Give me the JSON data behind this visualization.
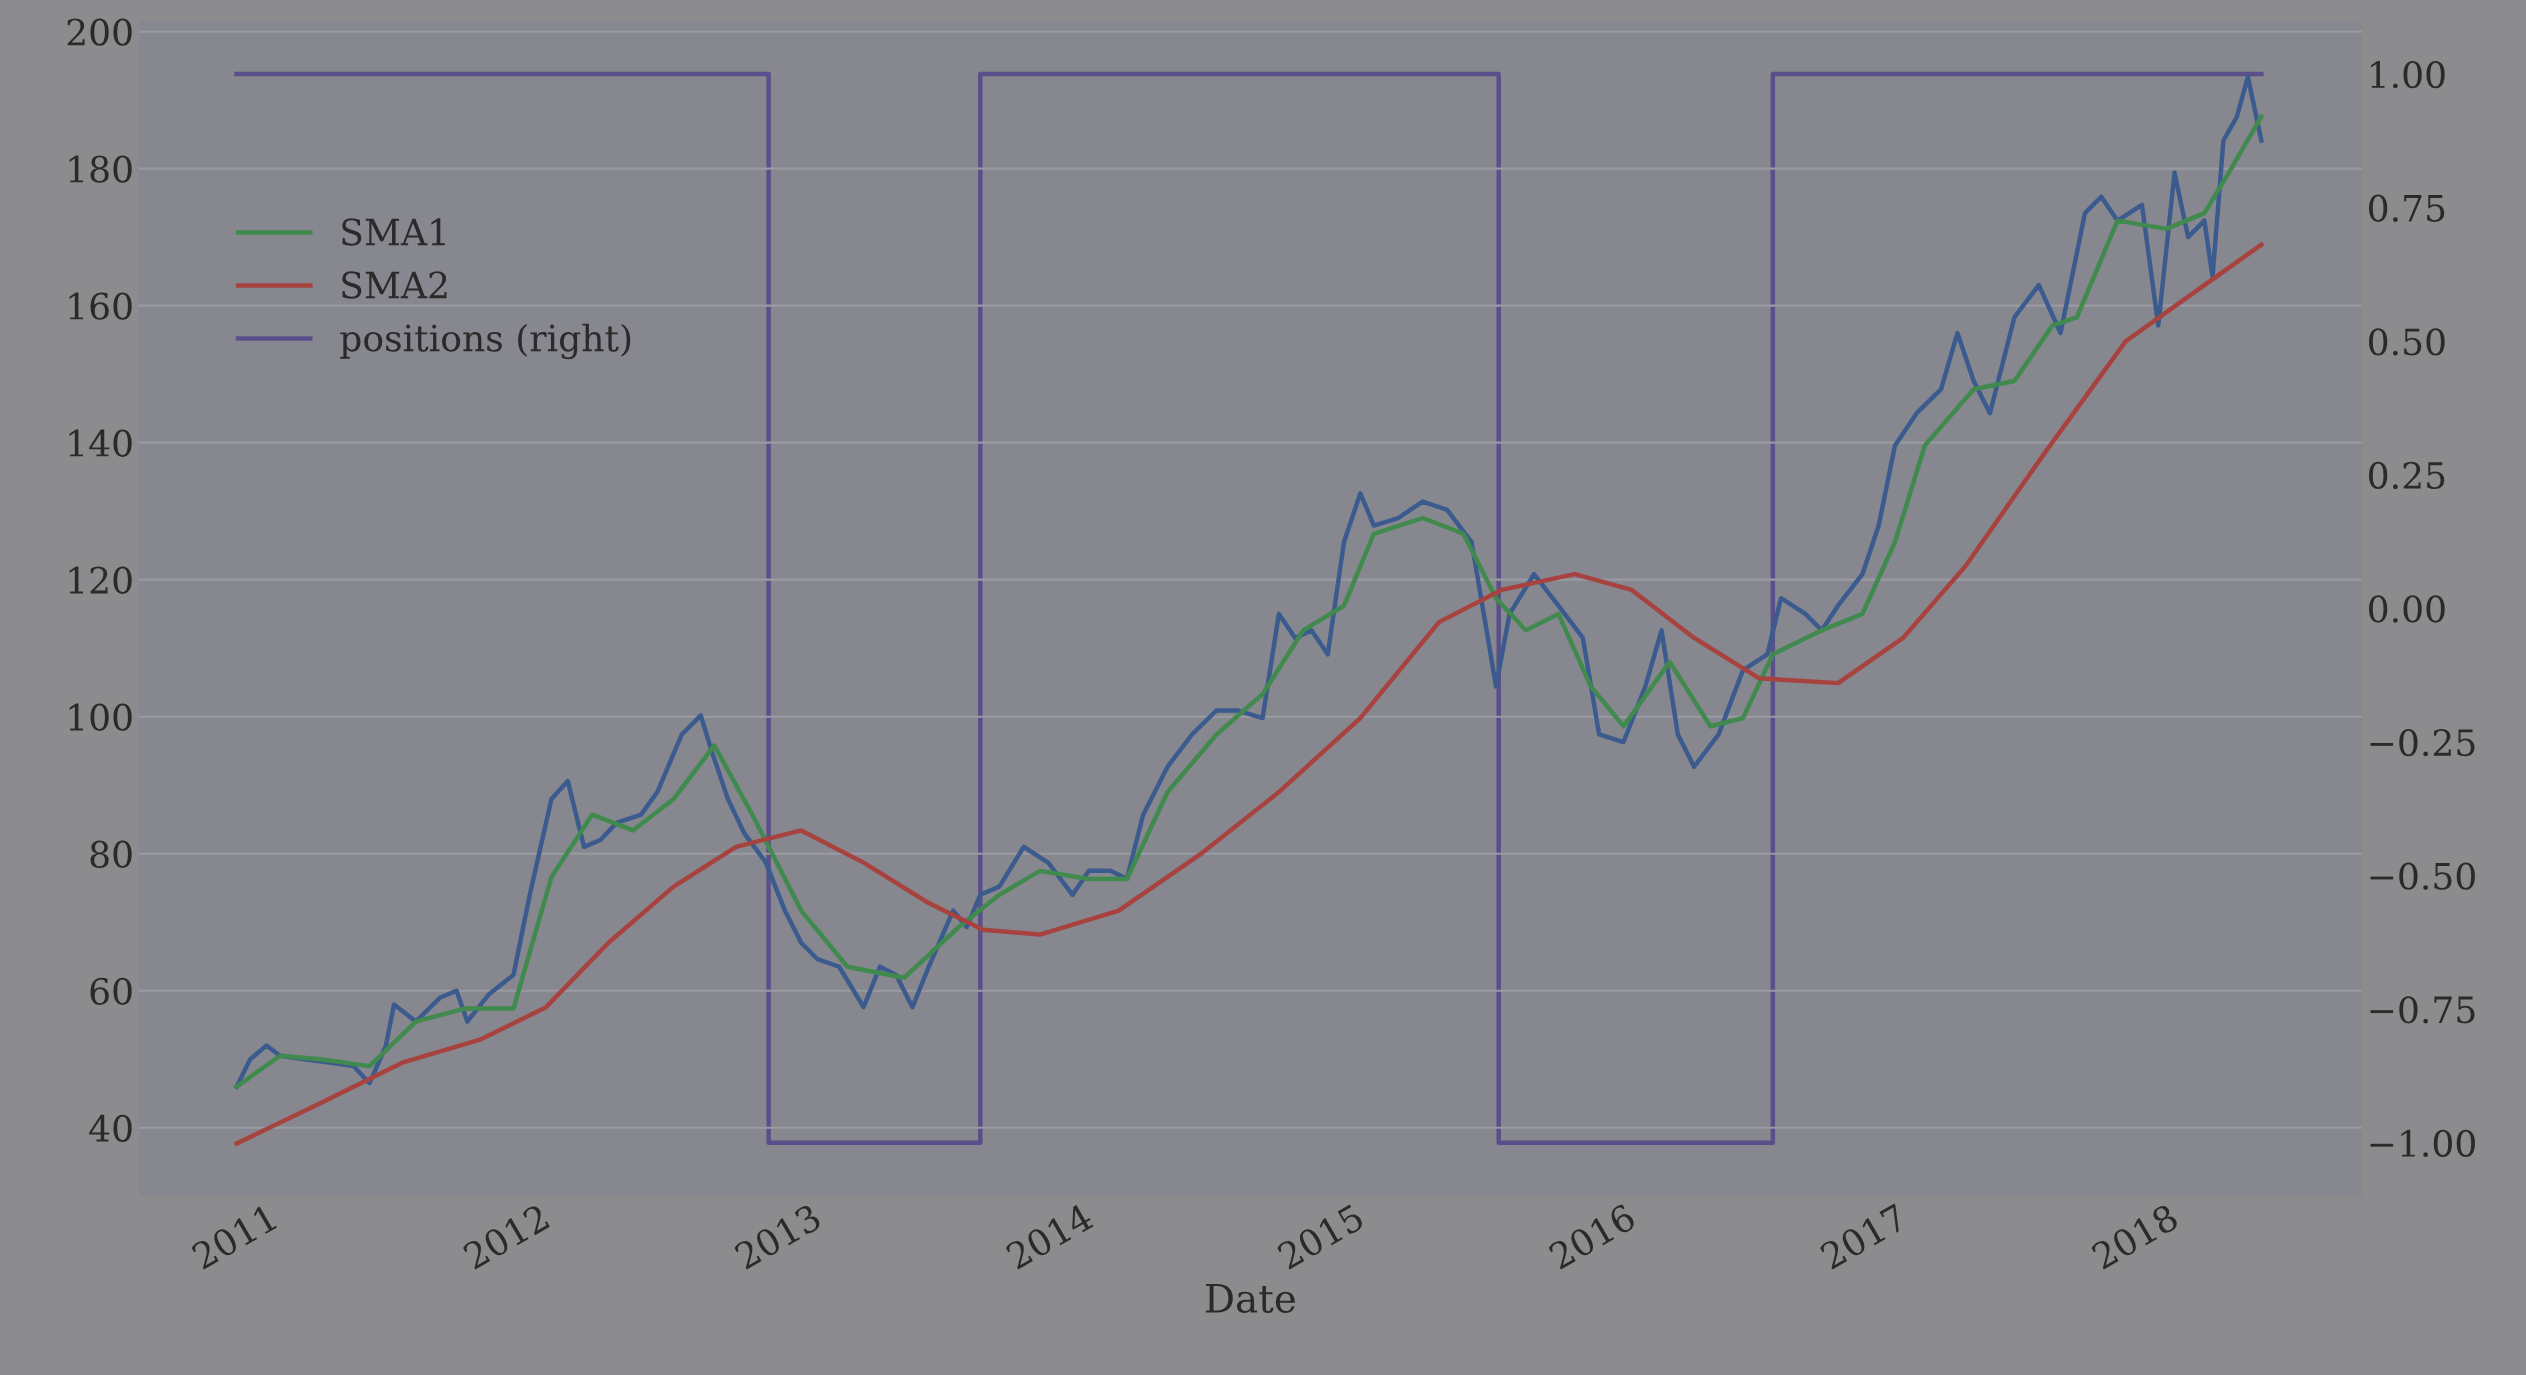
{
  "chart_data": {
    "type": "line",
    "xlabel": "Date",
    "xlim": [
      2010.64,
      2018.83
    ],
    "xticks": [
      2011,
      2012,
      2013,
      2014,
      2015,
      2016,
      2017,
      2018
    ],
    "ylim": [
      30,
      201.6
    ],
    "yticks": [
      40,
      60,
      80,
      100,
      120,
      140,
      160,
      180,
      200
    ],
    "y2lim": [
      -1.1,
      1.1
    ],
    "y2ticks": [
      {
        "value": -1.0,
        "label": "−1.00"
      },
      {
        "value": -0.75,
        "label": "−0.75"
      },
      {
        "value": -0.5,
        "label": "−0.50"
      },
      {
        "value": -0.25,
        "label": "−0.25"
      },
      {
        "value": 0.0,
        "label": "0.00"
      },
      {
        "value": 0.25,
        "label": "0.25"
      },
      {
        "value": 0.5,
        "label": "0.50"
      },
      {
        "value": 0.75,
        "label": "0.75"
      },
      {
        "value": 1.0,
        "label": "1.00"
      }
    ],
    "grid": "y",
    "legend": "top left",
    "series": [
      {
        "color": "#3b5b8f",
        "x": [
          2011.0,
          2011.05,
          2011.11,
          2011.16,
          2011.25,
          2011.34,
          2011.43,
          2011.49,
          2011.55,
          2011.58,
          2011.66,
          2011.75,
          2011.81,
          2011.85,
          2011.93,
          2012.02,
          2012.08,
          2012.16,
          2012.22,
          2012.28,
          2012.34,
          2012.4,
          2012.49,
          2012.55,
          2012.64,
          2012.71,
          2012.75,
          2012.81,
          2012.87,
          2012.95,
          2013.02,
          2013.08,
          2013.14,
          2013.22,
          2013.31,
          2013.37,
          2013.43,
          2013.49,
          2013.55,
          2013.64,
          2013.69,
          2013.74,
          2013.81,
          2013.9,
          2013.99,
          2014.08,
          2014.14,
          2014.22,
          2014.28,
          2014.34,
          2014.43,
          2014.52,
          2014.61,
          2014.69,
          2014.78,
          2014.84,
          2014.9,
          2014.96,
          2015.02,
          2015.08,
          2015.14,
          2015.19,
          2015.28,
          2015.37,
          2015.46,
          2015.55,
          2015.61,
          2015.64,
          2015.69,
          2015.78,
          2015.87,
          2015.96,
          2016.02,
          2016.11,
          2016.19,
          2016.25,
          2016.31,
          2016.37,
          2016.46,
          2016.55,
          2016.64,
          2016.69,
          2016.78,
          2016.84,
          2016.9,
          2016.99,
          2017.05,
          2017.11,
          2017.19,
          2017.28,
          2017.34,
          2017.4,
          2017.46,
          2017.55,
          2017.64,
          2017.72,
          2017.81,
          2017.87,
          2017.93,
          2018.02,
          2018.08,
          2018.14,
          2018.19,
          2018.25,
          2018.28,
          2018.32,
          2018.37,
          2018.41,
          2018.46
        ],
        "values": [
          46,
          50,
          52,
          50.5,
          50,
          49.5,
          49,
          46.5,
          52,
          58,
          55.5,
          59,
          60,
          55.5,
          59.5,
          62.3,
          74,
          88,
          90.6,
          81,
          82,
          84.5,
          85.7,
          89,
          97.4,
          100.2,
          95,
          88,
          83,
          78.7,
          71.7,
          67,
          64.6,
          63.5,
          57.6,
          63.5,
          62.3,
          57.6,
          63.5,
          71.7,
          69.3,
          74,
          75.2,
          81,
          78.7,
          74,
          77.5,
          77.5,
          76.3,
          85.7,
          92.7,
          97.4,
          100.9,
          100.9,
          99.8,
          115,
          111.5,
          112.6,
          109.1,
          125.5,
          132.6,
          127.9,
          129,
          131.4,
          130.2,
          125.5,
          111.5,
          104.4,
          115,
          120.8,
          116.2,
          111.5,
          97.4,
          96.3,
          104.4,
          112.6,
          97.4,
          92.7,
          97.4,
          106.8,
          109.1,
          117.3,
          115,
          112.6,
          116.2,
          120.8,
          127.9,
          139.6,
          144.3,
          147.8,
          156,
          149,
          144.3,
          158.3,
          163,
          156,
          173.5,
          175.9,
          172.4,
          174.7,
          157.1,
          179.4,
          170,
          172.4,
          164.2,
          184.1,
          187.6,
          193.4,
          184.1
        ]
      },
      {
        "name": "SMA1",
        "color": "#3f8a4c",
        "x": [
          2011.0,
          2011.16,
          2011.31,
          2011.49,
          2011.66,
          2011.84,
          2012.02,
          2012.16,
          2012.31,
          2012.46,
          2012.61,
          2012.76,
          2012.9,
          2013.08,
          2013.25,
          2013.46,
          2013.66,
          2013.81,
          2013.96,
          2014.14,
          2014.28,
          2014.43,
          2014.61,
          2014.78,
          2014.93,
          2015.08,
          2015.19,
          2015.37,
          2015.52,
          2015.64,
          2015.75,
          2015.87,
          2015.99,
          2016.11,
          2016.28,
          2016.43,
          2016.55,
          2016.66,
          2016.84,
          2016.99,
          2017.11,
          2017.22,
          2017.4,
          2017.55,
          2017.69,
          2017.78,
          2017.93,
          2018.11,
          2018.25,
          2018.34,
          2018.46
        ],
        "values": [
          46,
          50.5,
          50,
          49,
          55.5,
          57.4,
          57.4,
          76.6,
          85.7,
          83.4,
          88,
          95.8,
          85.7,
          71.7,
          63.5,
          61.9,
          69.3,
          74,
          77.5,
          76.3,
          76.3,
          89,
          97.4,
          103.3,
          112.6,
          116.2,
          126.7,
          129,
          126.7,
          117.3,
          112.6,
          115,
          104.4,
          98.6,
          108,
          98.6,
          99.8,
          109.1,
          112.6,
          115,
          125.5,
          139.6,
          147.8,
          149,
          157.1,
          158.3,
          172.4,
          171.2,
          173.5,
          179.4,
          187.6
        ]
      },
      {
        "name": "SMA2",
        "color": "#a8423f",
        "x": [
          2011.0,
          2011.31,
          2011.61,
          2011.9,
          2012.14,
          2012.37,
          2012.61,
          2012.84,
          2013.08,
          2013.31,
          2013.55,
          2013.75,
          2013.96,
          2014.25,
          2014.55,
          2014.84,
          2015.14,
          2015.43,
          2015.66,
          2015.93,
          2016.14,
          2016.37,
          2016.61,
          2016.9,
          2017.14,
          2017.37,
          2017.66,
          2017.96,
          2018.25,
          2018.46
        ],
        "values": [
          37.7,
          43.6,
          49.5,
          52.9,
          57.6,
          67,
          75.2,
          81,
          83.4,
          78.7,
          72.8,
          68.9,
          68.2,
          71.7,
          79.9,
          89,
          99.8,
          113.8,
          118.5,
          120.8,
          118.5,
          111.5,
          105.6,
          104.9,
          111.5,
          122,
          138.4,
          154.8,
          163,
          168.9
        ]
      },
      {
        "name": "positions (right)",
        "type": "step",
        "axis": "y2",
        "color": "#5a4f8a",
        "x": [
          2011.0,
          2012.96,
          2013.74,
          2015.65,
          2016.66,
          2018.46
        ],
        "values": [
          1,
          -1,
          1,
          -1,
          1,
          1
        ]
      }
    ]
  }
}
